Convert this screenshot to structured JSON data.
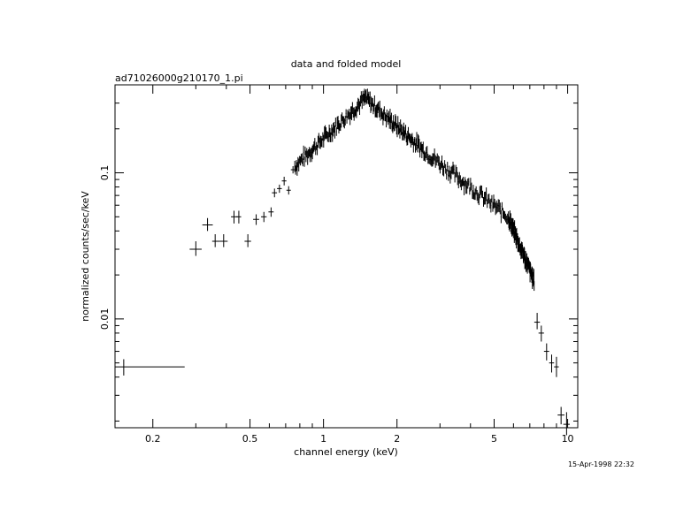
{
  "chart_data": {
    "type": "scatter",
    "title": "data and folded model",
    "subtitle": "ad71026000g210170_1.pi",
    "xlabel": "channel energy (keV)",
    "ylabel": "normalized counts/sec/keV",
    "xscale": "log",
    "yscale": "log",
    "xlim": [
      0.14,
      11
    ],
    "ylim": [
      0.0018,
      0.4
    ],
    "x_ticks": [
      {
        "value": 0.2,
        "label": "0.2"
      },
      {
        "value": 0.5,
        "label": "0.5"
      },
      {
        "value": 1,
        "label": "1"
      },
      {
        "value": 2,
        "label": "2"
      },
      {
        "value": 5,
        "label": "5"
      },
      {
        "value": 10,
        "label": "10"
      }
    ],
    "y_ticks": [
      {
        "value": 0.01,
        "label": "0.01"
      },
      {
        "value": 0.1,
        "label": "0.1"
      }
    ],
    "series": [
      {
        "points": [
          {
            "x": 0.152,
            "xlo": 0.14,
            "xhi": 0.27,
            "y": 0.0047,
            "ylo": 0.0041,
            "yhi": 0.0053
          },
          {
            "x": 0.3,
            "xlo": 0.283,
            "xhi": 0.317,
            "y": 0.03,
            "ylo": 0.027,
            "yhi": 0.034
          },
          {
            "x": 0.335,
            "xlo": 0.319,
            "xhi": 0.352,
            "y": 0.044,
            "ylo": 0.04,
            "yhi": 0.049
          },
          {
            "x": 0.36,
            "xlo": 0.35,
            "xhi": 0.375,
            "y": 0.034,
            "ylo": 0.031,
            "yhi": 0.038
          },
          {
            "x": 0.39,
            "xlo": 0.375,
            "xhi": 0.405,
            "y": 0.034,
            "ylo": 0.031,
            "yhi": 0.038
          },
          {
            "x": 0.43,
            "xlo": 0.418,
            "xhi": 0.445,
            "y": 0.05,
            "ylo": 0.045,
            "yhi": 0.055
          },
          {
            "x": 0.45,
            "xlo": 0.44,
            "xhi": 0.46,
            "y": 0.05,
            "ylo": 0.045,
            "yhi": 0.055
          },
          {
            "x": 0.49,
            "xlo": 0.475,
            "xhi": 0.505,
            "y": 0.034,
            "ylo": 0.031,
            "yhi": 0.038
          },
          {
            "x": 0.53,
            "xlo": 0.515,
            "xhi": 0.545,
            "y": 0.048,
            "ylo": 0.044,
            "yhi": 0.052
          },
          {
            "x": 0.57,
            "xlo": 0.555,
            "xhi": 0.585,
            "y": 0.05,
            "ylo": 0.046,
            "yhi": 0.054
          },
          {
            "x": 0.61,
            "xlo": 0.595,
            "xhi": 0.625,
            "y": 0.054,
            "ylo": 0.05,
            "yhi": 0.058
          },
          {
            "x": 0.63,
            "xlo": 0.615,
            "xhi": 0.645,
            "y": 0.073,
            "ylo": 0.068,
            "yhi": 0.078
          },
          {
            "x": 0.66,
            "xlo": 0.645,
            "xhi": 0.675,
            "y": 0.078,
            "ylo": 0.073,
            "yhi": 0.083
          },
          {
            "x": 0.69,
            "xlo": 0.675,
            "xhi": 0.705,
            "y": 0.088,
            "ylo": 0.082,
            "yhi": 0.094
          },
          {
            "x": 0.72,
            "xlo": 0.705,
            "xhi": 0.735,
            "y": 0.076,
            "ylo": 0.071,
            "yhi": 0.081
          },
          {
            "x": 0.75,
            "xlo": 0.735,
            "xhi": 0.765,
            "y": 0.105,
            "ylo": 0.099,
            "yhi": 0.111
          }
        ]
      }
    ],
    "dense_segments": [
      {
        "x_start": 0.76,
        "x_end": 1.5,
        "y_start": 0.11,
        "y_end": 0.33,
        "profile": "rise"
      },
      {
        "x_start": 1.5,
        "x_end": 2.6,
        "y_start": 0.32,
        "y_end": 0.14,
        "profile": "fall"
      },
      {
        "x_start": 2.6,
        "x_end": 5.7,
        "y_start": 0.14,
        "y_end": 0.05,
        "profile": "fall"
      },
      {
        "x_start": 5.7,
        "x_end": 7.3,
        "y_start": 0.05,
        "y_end": 0.018,
        "profile": "fall"
      }
    ],
    "tail_points": [
      {
        "x": 7.5,
        "xlo": 7.3,
        "xhi": 7.7,
        "y": 0.0095,
        "ylo": 0.0085,
        "yhi": 0.011
      },
      {
        "x": 7.8,
        "xlo": 7.6,
        "xhi": 8.0,
        "y": 0.008,
        "ylo": 0.007,
        "yhi": 0.009
      },
      {
        "x": 8.2,
        "xlo": 8.0,
        "xhi": 8.4,
        "y": 0.006,
        "ylo": 0.0052,
        "yhi": 0.0068
      },
      {
        "x": 8.6,
        "xlo": 8.4,
        "xhi": 8.8,
        "y": 0.005,
        "ylo": 0.0043,
        "yhi": 0.0057
      },
      {
        "x": 9.0,
        "xlo": 8.8,
        "xhi": 9.2,
        "y": 0.0047,
        "ylo": 0.004,
        "yhi": 0.0055
      },
      {
        "x": 9.4,
        "xlo": 9.1,
        "xhi": 9.7,
        "y": 0.0022,
        "ylo": 0.0019,
        "yhi": 0.0025
      },
      {
        "x": 9.9,
        "xlo": 9.6,
        "xhi": 10.2,
        "y": 0.0019,
        "ylo": 0.0016,
        "yhi": 0.0023
      }
    ]
  },
  "timestamp": "15-Apr-1998 22:32"
}
